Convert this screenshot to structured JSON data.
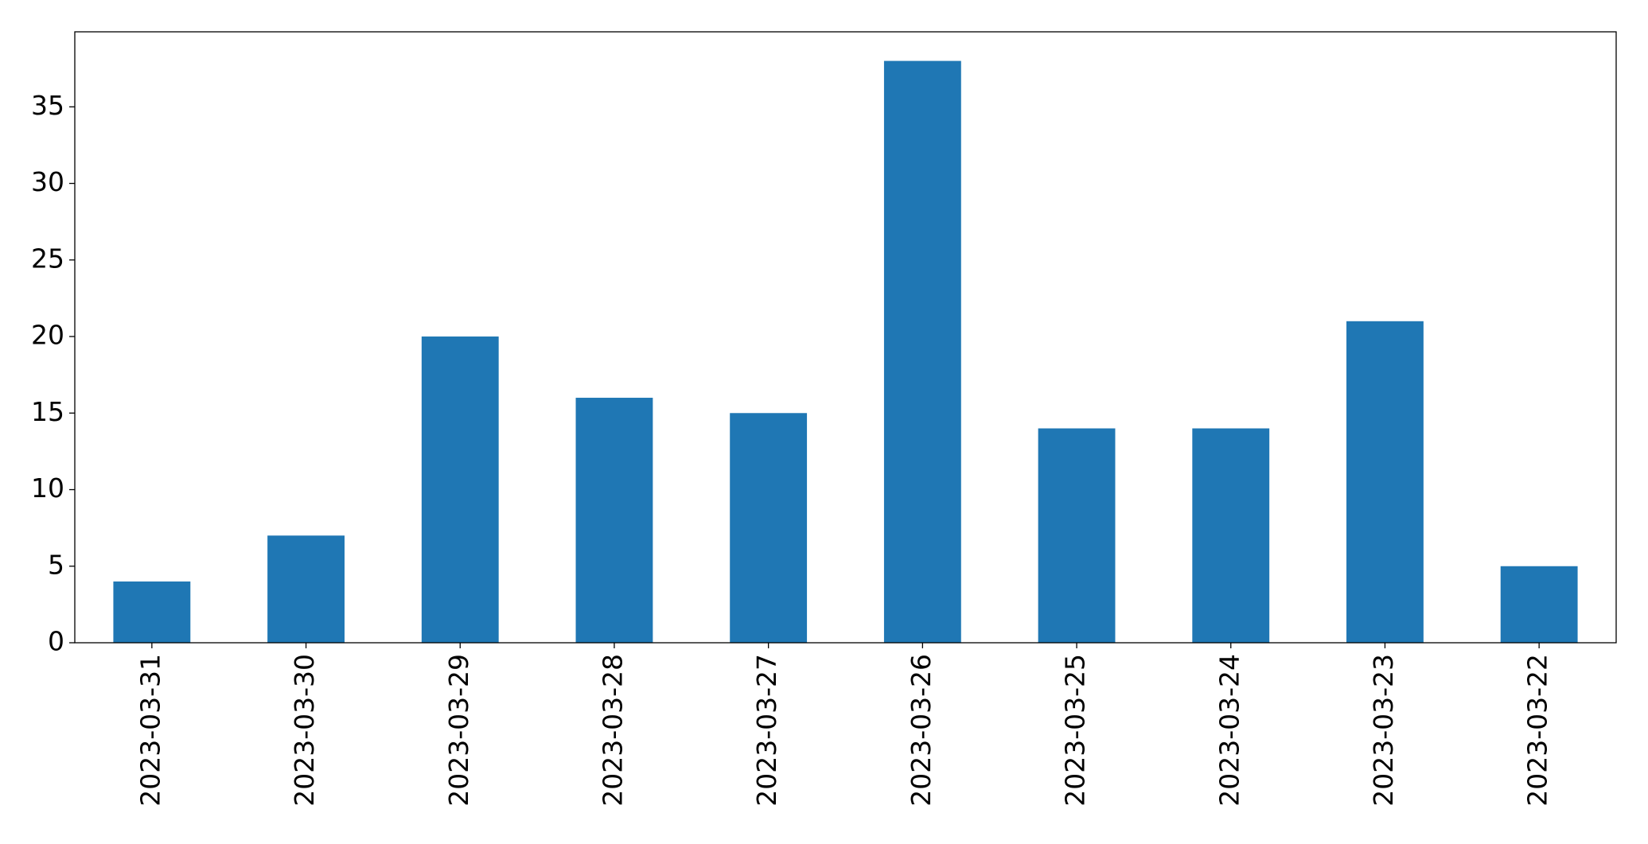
{
  "chart_data": {
    "type": "bar",
    "categories": [
      "2023-03-31",
      "2023-03-30",
      "2023-03-29",
      "2023-03-28",
      "2023-03-27",
      "2023-03-26",
      "2023-03-25",
      "2023-03-24",
      "2023-03-23",
      "2023-03-22"
    ],
    "values": [
      4,
      7,
      20,
      16,
      15,
      38,
      14,
      14,
      21,
      5
    ],
    "color": "#1f77b4",
    "ylim": [
      0,
      39.9
    ],
    "yticks": [
      0,
      5,
      10,
      15,
      20,
      25,
      30,
      35
    ],
    "grid": false
  }
}
